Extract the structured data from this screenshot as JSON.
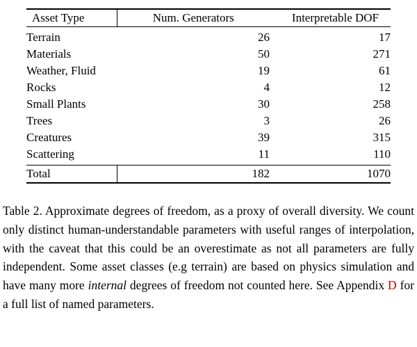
{
  "colors": {
    "text": "#000000",
    "background": "#ffffff",
    "appendix_link_red": "#cb0000"
  },
  "table": {
    "headers": [
      "Asset Type",
      "Num. Generators",
      "Interpretable DOF"
    ],
    "rows": [
      {
        "asset": "Terrain",
        "generators": "26",
        "dof": "17"
      },
      {
        "asset": "Materials",
        "generators": "50",
        "dof": "271"
      },
      {
        "asset": "Weather, Fluid",
        "generators": "19",
        "dof": "61"
      },
      {
        "asset": "Rocks",
        "generators": "4",
        "dof": "12"
      },
      {
        "asset": "Small Plants",
        "generators": "30",
        "dof": "258"
      },
      {
        "asset": "Trees",
        "generators": "3",
        "dof": "26"
      },
      {
        "asset": "Creatures",
        "generators": "39",
        "dof": "315"
      },
      {
        "asset": "Scattering",
        "generators": "11",
        "dof": "110"
      }
    ],
    "total": {
      "asset": "Total",
      "generators": "182",
      "dof": "1070"
    }
  },
  "caption": {
    "label": "Table 2.",
    "body_1": "Approximate degrees of freedom, as a proxy of overall diversity. We count only distinct human-understandable parameters with useful ranges of interpolation, with the caveat that this could be an overestimate as not all parameters are fully independent. Some asset classes (e.g terrain) are based on physics simulation and have many more ",
    "italic_word": "internal",
    "body_2": " degrees of freedom not counted here. See Appendix ",
    "link_text": "D",
    "body_3": " for a full list of named parameters."
  }
}
